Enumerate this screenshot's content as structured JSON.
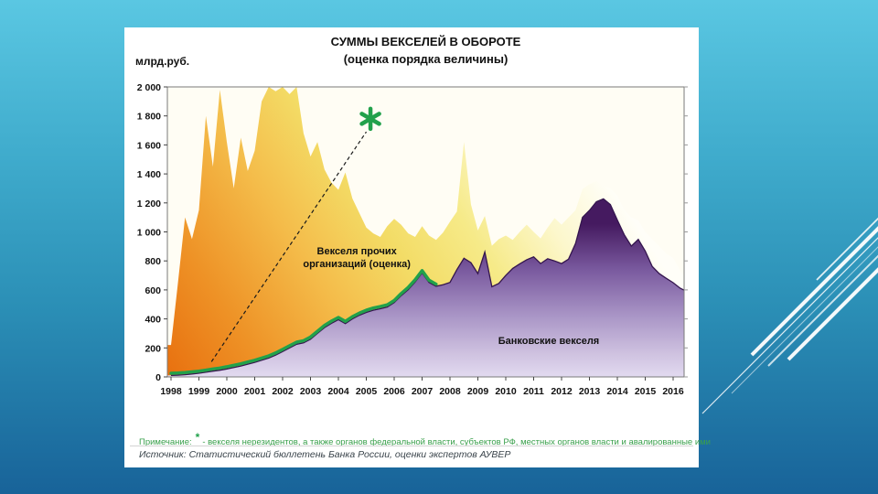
{
  "panel": {
    "title_line1": "СУММЫ ВЕКСЕЛЕЙ В ОБОРОТЕ",
    "title_line2": "(оценка порядка величины)",
    "y_axis_unit": "млрд.руб.",
    "note_label": "Примечание:",
    "note_star": "*",
    "note_text": "- векселя нерезидентов, а также органов федеральной власти, субъектов РФ, местных органов власти  и авалированные ими",
    "source_text": "Источник: Статистический бюллетень Банка России, оценки экспертов АУВЕР"
  },
  "colors": {
    "slide_bg_top": "#5ac7e2",
    "slide_bg_bottom": "#186399",
    "orange_low": "#e8700f",
    "yellow_mid": "#f4bc4a",
    "cream_high": "#fffef8",
    "purple_dark": "#451a60",
    "purple_light": "#e2daf0",
    "purple_outline": "#34154e",
    "green_line": "#22a14b",
    "note_green": "#3aa04c",
    "plot_bg": "#fffdf4"
  },
  "chart_data": {
    "type": "area",
    "title": "СУММЫ ВЕКСЕЛЕЙ В ОБОРОТЕ (оценка порядка величины)",
    "ylabel": "млрд.руб.",
    "ylim": [
      0,
      2000
    ],
    "y_tick_step": 200,
    "y_tick_labels": [
      "0",
      "200",
      "400",
      "600",
      "800",
      "1 000",
      "1 200",
      "1 400",
      "1 600",
      "1 800",
      "2 000"
    ],
    "x_tick_labels": [
      "1998",
      "1999",
      "2000",
      "2001",
      "2002",
      "2003",
      "2004",
      "2005",
      "2006",
      "2007",
      "2008",
      "2009",
      "2010",
      "2011",
      "2012",
      "2013",
      "2014",
      "2015",
      "2016"
    ],
    "x_start": 1998,
    "x_step": 0.25,
    "grid": false,
    "legend": "labels inside plot",
    "series": [
      {
        "name": "Банковские векселя",
        "role": "lower stacked area (purple), values are top of purple band, млрд.руб.",
        "values": [
          10,
          12,
          15,
          20,
          25,
          32,
          40,
          46,
          55,
          65,
          75,
          88,
          100,
          115,
          130,
          150,
          175,
          200,
          225,
          235,
          260,
          300,
          340,
          370,
          395,
          368,
          400,
          425,
          445,
          460,
          470,
          482,
          512,
          560,
          602,
          655,
          718,
          652,
          625,
          636,
          652,
          740,
          818,
          788,
          712,
          862,
          622,
          645,
          700,
          748,
          780,
          808,
          828,
          782,
          815,
          800,
          782,
          812,
          920,
          1100,
          1148,
          1208,
          1228,
          1188,
          1082,
          980,
          902,
          948,
          868,
          762,
          712,
          680,
          650,
          612,
          598
        ]
      },
      {
        "name": "Векселя нерезидентов, органов федеральной власти, субъектов РФ, местных органов власти и авалированные ими",
        "role": "thin green line band on top of bank bills, visible 1998-2007",
        "values": [
          25,
          27,
          30,
          35,
          40,
          47,
          55,
          61,
          70,
          80,
          90,
          103,
          115,
          130,
          145,
          165,
          190,
          215,
          240,
          250,
          275,
          315,
          355,
          385,
          410,
          383,
          415,
          440,
          460,
          475,
          485,
          497,
          527,
          575,
          617,
          670,
          733,
          667,
          640,
          null,
          null,
          null,
          null,
          null,
          null,
          null,
          null,
          null,
          null,
          null,
          null,
          null,
          null,
          null,
          null,
          null,
          null,
          null,
          null,
          null,
          null,
          null,
          null,
          null,
          null,
          null,
          null,
          null,
          null,
          null,
          null,
          null,
          null,
          null,
          null
        ]
      },
      {
        "name": "Векселя прочих организаций (оценка)",
        "role": "upper stacked area (orange-yellow), values are total top boundary, млрд.руб.",
        "values": [
          220,
          650,
          1100,
          950,
          1150,
          1800,
          1450,
          1980,
          1620,
          1300,
          1650,
          1420,
          1560,
          1900,
          2000,
          1970,
          2000,
          1950,
          2000,
          1680,
          1520,
          1620,
          1430,
          1340,
          1290,
          1410,
          1230,
          1130,
          1030,
          990,
          965,
          1040,
          1090,
          1050,
          990,
          965,
          1040,
          975,
          945,
          995,
          1070,
          1140,
          1620,
          1190,
          1010,
          1110,
          905,
          950,
          975,
          945,
          1000,
          1050,
          1000,
          955,
          1030,
          1095,
          1050,
          1100,
          1150,
          1295,
          1330,
          1350,
          1320,
          1300,
          1250,
          1150,
          1100,
          1080,
          1000,
          950,
          900,
          852,
          820,
          735,
          690
        ]
      }
    ],
    "annotations": {
      "other_label": {
        "line1": "Векселя прочих",
        "line2": "организаций (оценка)",
        "x": 2004.66,
        "y": 820
      },
      "bank_label": {
        "text": "Банковские векселя",
        "x": 2011.54,
        "y": 246
      },
      "asterisk": {
        "x": 2005.15,
        "y": 1780,
        "color": "#22a14b"
      },
      "dashed_line": {
        "x1": 1999.45,
        "y1": 105,
        "x2": 2005.0,
        "y2": 1690
      }
    }
  }
}
